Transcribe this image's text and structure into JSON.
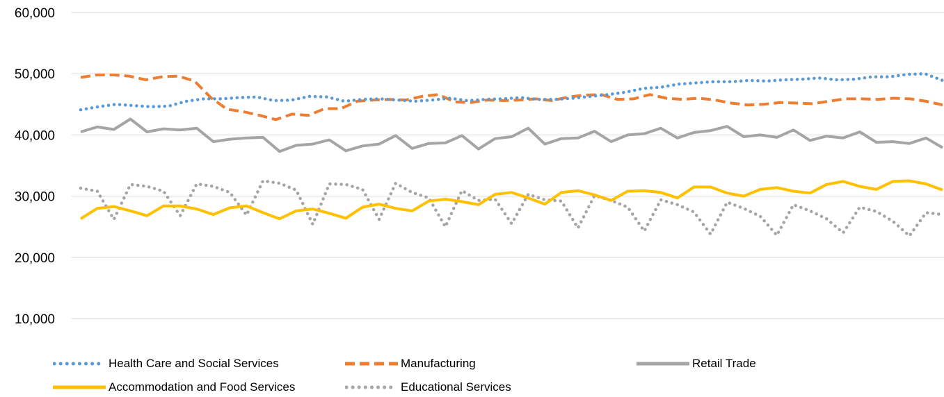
{
  "chart_data": {
    "type": "line",
    "title": "",
    "xlabel": "",
    "ylabel": "",
    "ylim": [
      10000,
      60000
    ],
    "yticks": [
      "10,000",
      "20,000",
      "30,000",
      "40,000",
      "50,000",
      "60,000"
    ],
    "ytick_values": [
      10000,
      20000,
      30000,
      40000,
      50000,
      60000
    ],
    "grid": true,
    "legend_position": "bottom",
    "series": [
      {
        "name": "Health Care and Social Services",
        "color": "#5B9BD5",
        "style": "dotted",
        "values": [
          44100,
          44600,
          45000,
          44800,
          44600,
          44700,
          45500,
          45900,
          45900,
          46100,
          46200,
          45600,
          45700,
          46300,
          46200,
          45500,
          45800,
          45900,
          45700,
          45500,
          45700,
          46000,
          45600,
          45800,
          45900,
          46100,
          45800,
          45800,
          46000,
          46300,
          46600,
          47000,
          47600,
          47800,
          48300,
          48500,
          48700,
          48700,
          48900,
          48800,
          49000,
          49100,
          49300,
          49000,
          49100,
          49500,
          49500,
          49900,
          50000,
          48900
        ]
      },
      {
        "name": "Manufacturing",
        "color": "#ED7D31",
        "style": "dashed",
        "values": [
          49400,
          49800,
          49800,
          49600,
          49000,
          49500,
          49600,
          48800,
          46100,
          44200,
          43800,
          43200,
          42500,
          43400,
          43200,
          44300,
          44300,
          45500,
          45700,
          45800,
          45700,
          46300,
          46600,
          45400,
          45300,
          45700,
          45600,
          45700,
          45900,
          45600,
          46200,
          46500,
          46600,
          45800,
          45900,
          46600,
          46000,
          45800,
          46000,
          45700,
          45200,
          44900,
          45000,
          45300,
          45200,
          45100,
          45500,
          45900,
          45900,
          45800,
          46000,
          45900,
          45500,
          44900
        ]
      },
      {
        "name": "Retail Trade",
        "color": "#A5A5A5",
        "style": "solid",
        "values": [
          40500,
          41300,
          40900,
          42600,
          40500,
          41000,
          40800,
          41100,
          38900,
          39300,
          39500,
          39600,
          37300,
          38300,
          38500,
          39200,
          37400,
          38200,
          38500,
          39900,
          37800,
          38600,
          38700,
          39900,
          37700,
          39400,
          39700,
          41100,
          38500,
          39400,
          39500,
          40600,
          38900,
          40000,
          40200,
          41100,
          39500,
          40400,
          40700,
          41400,
          39700,
          40000,
          39600,
          40800,
          39100,
          39800,
          39500,
          40500,
          38800,
          38900,
          38600,
          39500,
          37900
        ]
      },
      {
        "name": "Accommodation and Food Services",
        "color": "#FFC000",
        "style": "solid",
        "values": [
          26300,
          28000,
          28300,
          27600,
          26800,
          28400,
          28400,
          27900,
          27000,
          28100,
          28400,
          27300,
          26300,
          27600,
          27900,
          27200,
          26400,
          28200,
          28700,
          28000,
          27600,
          29200,
          29500,
          29100,
          28600,
          30300,
          30600,
          29700,
          28700,
          30600,
          30900,
          30200,
          29300,
          30800,
          30900,
          30600,
          29700,
          31500,
          31500,
          30500,
          30000,
          31100,
          31400,
          30800,
          30500,
          31900,
          32400,
          31600,
          31100,
          32400,
          32500,
          32000,
          31000
        ]
      },
      {
        "name": "Educational Services",
        "color": "#A5A5A5",
        "style": "dotted",
        "values": [
          31300,
          30800,
          26200,
          31900,
          31600,
          30800,
          26800,
          32000,
          31600,
          30600,
          26900,
          32500,
          32100,
          31000,
          25400,
          32000,
          31900,
          31100,
          26200,
          32100,
          30600,
          29700,
          25000,
          30900,
          29300,
          29500,
          25500,
          30300,
          29400,
          29200,
          24800,
          30100,
          29300,
          28200,
          24300,
          29400,
          28600,
          27400,
          23800,
          29000,
          28000,
          26700,
          23600,
          28600,
          27600,
          26300,
          24000,
          28200,
          27500,
          25900,
          23500,
          27300,
          27000
        ]
      }
    ]
  }
}
